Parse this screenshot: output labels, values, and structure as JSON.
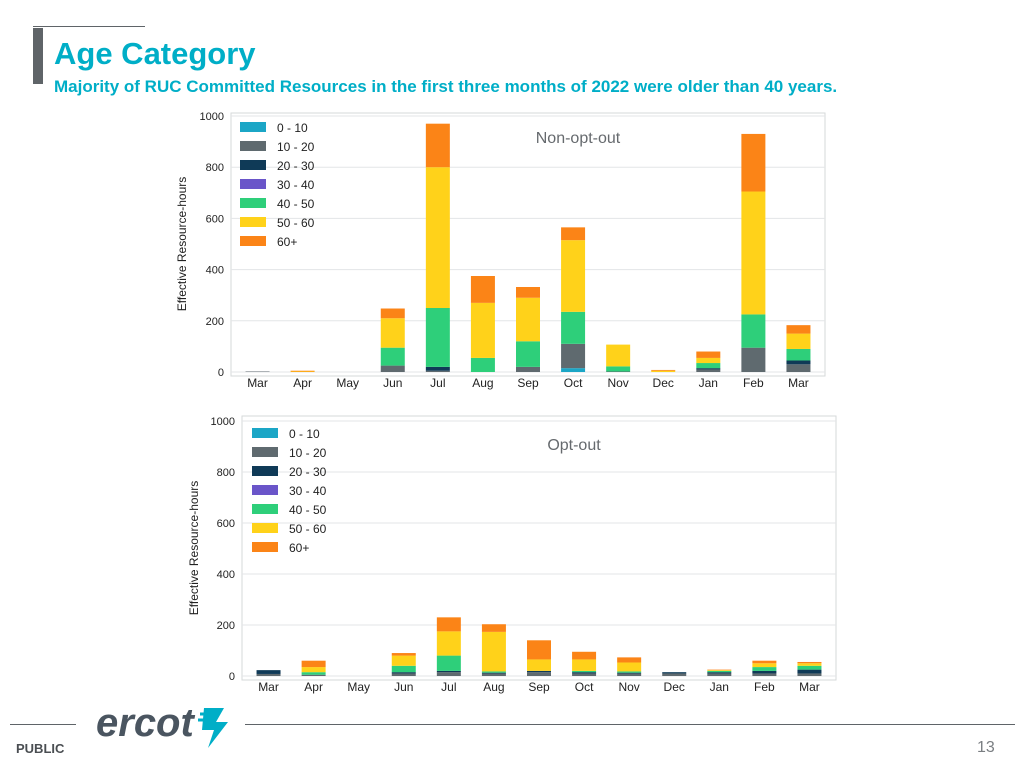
{
  "header": {
    "title": "Age Category",
    "subtitle": "Majority of RUC Committed Resources in the first three months of 2022 were older than 40 years."
  },
  "footer": {
    "classification": "PUBLIC",
    "page_number": "13",
    "logo_text": "ercot"
  },
  "colors": {
    "title": "#00aec7",
    "age_0_10": "#1ba6c6",
    "age_10_20": "#5f6a6f",
    "age_20_30": "#0f3a57",
    "age_30_40": "#6a55c9",
    "age_40_50": "#2ecf7a",
    "age_50_60": "#ffd21a",
    "age_60_plus": "#fb8417"
  },
  "chart_data": [
    {
      "type": "bar",
      "stacked": true,
      "title": "Non-opt-out",
      "xlabel": "",
      "ylabel": "Effective Resource-hours",
      "ylim": [
        0,
        1000
      ],
      "yticks": [
        "0",
        "200",
        "400",
        "600",
        "800",
        "1000"
      ],
      "categories": [
        "Mar",
        "Apr",
        "May",
        "Jun",
        "Jul",
        "Aug",
        "Sep",
        "Oct",
        "Nov",
        "Dec",
        "Jan",
        "Feb",
        "Mar"
      ],
      "legend_position": "top-left",
      "series": [
        {
          "name": "0 - 10",
          "values": [
            0,
            0,
            0,
            0,
            0,
            0,
            0,
            15,
            0,
            0,
            0,
            0,
            0
          ]
        },
        {
          "name": "10 - 20",
          "values": [
            2,
            0,
            0,
            25,
            5,
            0,
            20,
            95,
            2,
            0,
            10,
            95,
            30
          ]
        },
        {
          "name": "20 - 30",
          "values": [
            0,
            0,
            0,
            0,
            15,
            0,
            0,
            0,
            0,
            0,
            5,
            0,
            15
          ]
        },
        {
          "name": "30 - 40",
          "values": [
            0,
            0,
            0,
            0,
            0,
            0,
            0,
            0,
            0,
            0,
            0,
            0,
            0
          ]
        },
        {
          "name": "40 - 50",
          "values": [
            0,
            0,
            0,
            70,
            230,
            55,
            100,
            125,
            20,
            0,
            20,
            130,
            45
          ]
        },
        {
          "name": "50 - 60",
          "values": [
            0,
            2,
            0,
            115,
            550,
            215,
            170,
            280,
            85,
            5,
            20,
            480,
            60
          ]
        },
        {
          "name": "60+",
          "values": [
            0,
            3,
            0,
            38,
            170,
            105,
            42,
            50,
            0,
            3,
            25,
            225,
            33
          ]
        }
      ]
    },
    {
      "type": "bar",
      "stacked": true,
      "title": "Opt-out",
      "xlabel": "",
      "ylabel": "Effective Resource-hours",
      "ylim": [
        0,
        1000
      ],
      "yticks": [
        "0",
        "200",
        "400",
        "600",
        "800",
        "1000"
      ],
      "categories": [
        "Mar",
        "Apr",
        "May",
        "Jun",
        "Jul",
        "Aug",
        "Sep",
        "Oct",
        "Nov",
        "Dec",
        "Jan",
        "Feb",
        "Mar"
      ],
      "legend_position": "top-left",
      "series": [
        {
          "name": "0 - 10",
          "values": [
            0,
            0,
            0,
            0,
            0,
            0,
            0,
            0,
            0,
            0,
            0,
            0,
            0
          ]
        },
        {
          "name": "10 - 20",
          "values": [
            8,
            5,
            0,
            10,
            15,
            10,
            15,
            10,
            10,
            10,
            10,
            10,
            10
          ]
        },
        {
          "name": "20 - 30",
          "values": [
            15,
            0,
            0,
            5,
            5,
            3,
            5,
            5,
            3,
            5,
            5,
            10,
            15
          ]
        },
        {
          "name": "30 - 40",
          "values": [
            0,
            0,
            0,
            0,
            0,
            0,
            0,
            0,
            0,
            0,
            0,
            0,
            0
          ]
        },
        {
          "name": "40 - 50",
          "values": [
            0,
            10,
            0,
            25,
            60,
            5,
            0,
            5,
            5,
            0,
            5,
            15,
            15
          ]
        },
        {
          "name": "50 - 60",
          "values": [
            0,
            20,
            0,
            40,
            95,
            155,
            45,
            45,
            35,
            0,
            3,
            15,
            10
          ]
        },
        {
          "name": "60+",
          "values": [
            0,
            25,
            0,
            10,
            55,
            30,
            75,
            30,
            20,
            0,
            2,
            10,
            5
          ]
        }
      ]
    }
  ]
}
